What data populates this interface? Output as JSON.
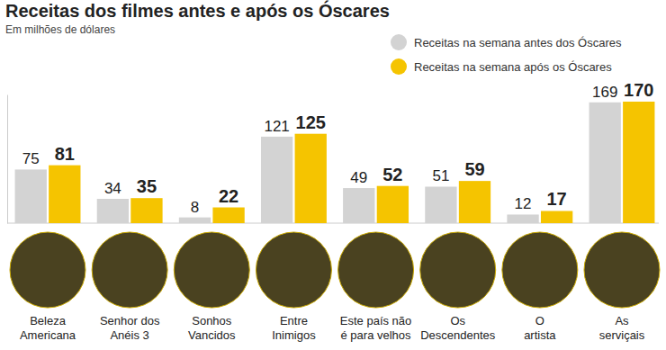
{
  "chart_data": {
    "type": "bar",
    "title": "Receitas dos filmes antes e após os Óscares",
    "subtitle": "Em milhões de dólares",
    "categories": [
      "Beleza\nAmericana",
      "Senhor dos\nAnéis 3",
      "Sonhos\nVancidos",
      "Entre\nInimigos",
      "Este país não\né para velhos",
      "Os\nDescendentes",
      "O\nartista",
      "As\nserviçais"
    ],
    "series": [
      {
        "name": "Receitas na semana antes dos Óscares",
        "color": "#d3d3d3",
        "values": [
          75,
          34,
          8,
          121,
          49,
          51,
          12,
          169
        ]
      },
      {
        "name": "Receitas na semana após os Óscares",
        "color": "#f5c400",
        "values": [
          81,
          35,
          22,
          125,
          52,
          59,
          17,
          170
        ]
      }
    ],
    "ylim": [
      0,
      180
    ],
    "tick_labels": false,
    "data_labels": true,
    "legend": "top-right"
  }
}
